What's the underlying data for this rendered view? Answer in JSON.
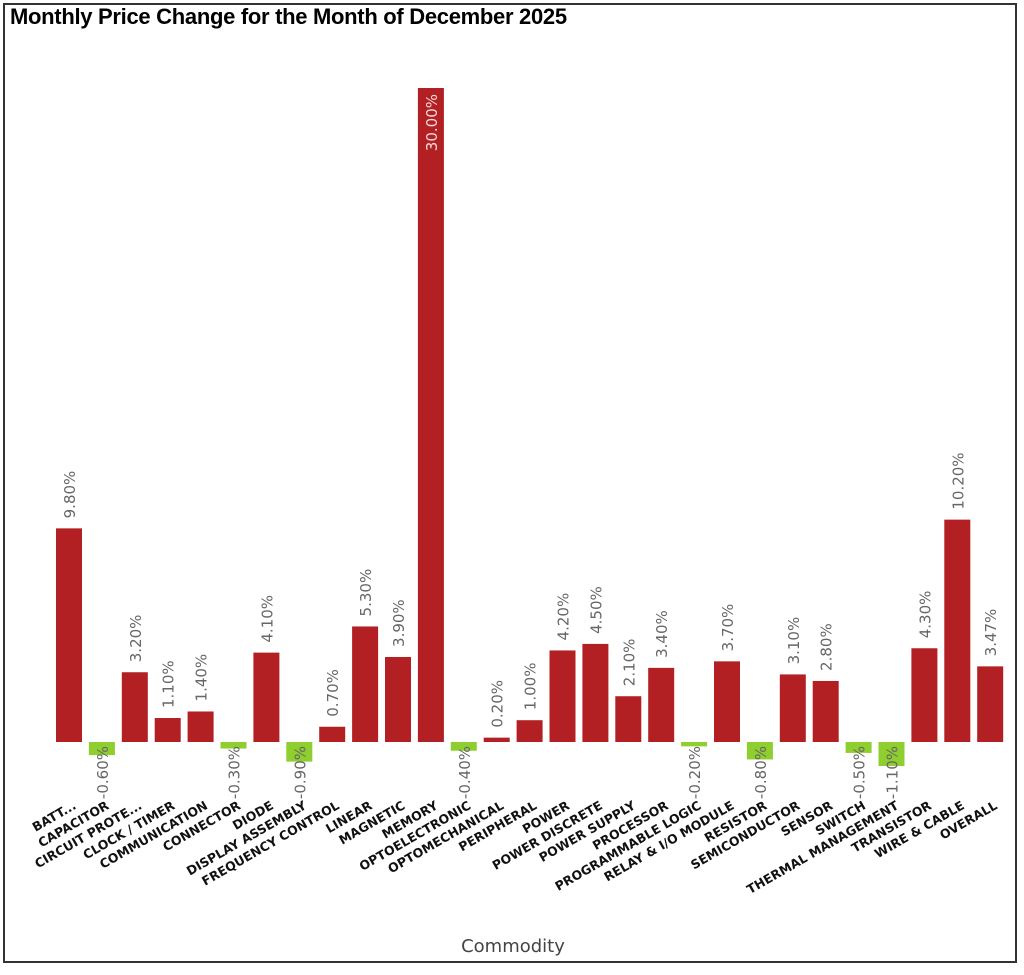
{
  "chart_data": {
    "type": "bar",
    "title": "Monthly Price Change for the Month of December 2025",
    "xlabel": "Commodity",
    "ylabel": "",
    "grid": false,
    "legend": "none",
    "ylim": [
      -1.1,
      30.0
    ],
    "colors": {
      "positive": "#b22024",
      "negative": "#8fce2f",
      "label": "#666666",
      "label_inside": "#f2dada"
    },
    "categories": [
      "BATT...",
      "CAPACITOR",
      "CIRCUIT PROTE...",
      "CLOCK / TIMER",
      "COMMUNICATION",
      "CONNECTOR",
      "DIODE",
      "DISPLAY ASSEMBLY",
      "FREQUENCY CONTROL",
      "LINEAR",
      "MAGNETIC",
      "MEMORY",
      "OPTOELECTRONIC",
      "OPTOMECHANICAL",
      "PERIPHERAL",
      "POWER",
      "POWER DISCRETE",
      "POWER SUPPLY",
      "PROCESSOR",
      "PROGRAMMABLE LOGIC",
      "RELAY & I/O MODULE",
      "RESISTOR",
      "SEMICONDUCTOR",
      "SENSOR",
      "SWITCH",
      "THERMAL MANAGEMENT",
      "TRANSISTOR",
      "WIRE & CABLE",
      "OVERALL"
    ],
    "values": [
      9.8,
      -0.6,
      3.2,
      1.1,
      1.4,
      -0.3,
      4.1,
      -0.9,
      0.7,
      5.3,
      3.9,
      30.0,
      -0.4,
      0.2,
      1.0,
      4.2,
      4.5,
      2.1,
      3.4,
      -0.2,
      3.7,
      -0.8,
      3.1,
      2.8,
      -0.5,
      -1.1,
      4.3,
      10.2,
      3.47
    ],
    "data_labels": [
      "9.80%",
      "-0.60%",
      "3.20%",
      "1.10%",
      "1.40%",
      "-0.30%",
      "4.10%",
      "-0.90%",
      "0.70%",
      "5.30%",
      "3.90%",
      "30.00%",
      "-0.40%",
      "0.20%",
      "1.00%",
      "4.20%",
      "4.50%",
      "2.10%",
      "3.40%",
      "-0.20%",
      "3.70%",
      "-0.80%",
      "3.10%",
      "2.80%",
      "-0.50%",
      "-1.10%",
      "4.30%",
      "10.20%",
      "3.47%"
    ]
  }
}
